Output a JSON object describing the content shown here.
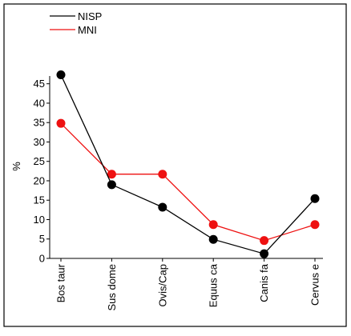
{
  "chart_data": {
    "type": "line",
    "categories": [
      "Bos taur",
      "Sus dome",
      "Ovis/Cap",
      "Equus ca",
      "Canis fa",
      "Cervus e"
    ],
    "ylabel": "%",
    "ylim": [
      0,
      47
    ],
    "yticks": [
      0,
      5,
      10,
      15,
      20,
      25,
      30,
      35,
      40,
      45
    ],
    "legend_position": "top-left",
    "series": [
      {
        "name": "NISP",
        "color": "#000000",
        "values": [
          47.3,
          19.0,
          13.2,
          4.9,
          1.2,
          15.4
        ]
      },
      {
        "name": "MNI",
        "color": "#ee1111",
        "values": [
          34.8,
          21.7,
          21.7,
          8.7,
          4.6,
          8.7
        ]
      }
    ]
  }
}
